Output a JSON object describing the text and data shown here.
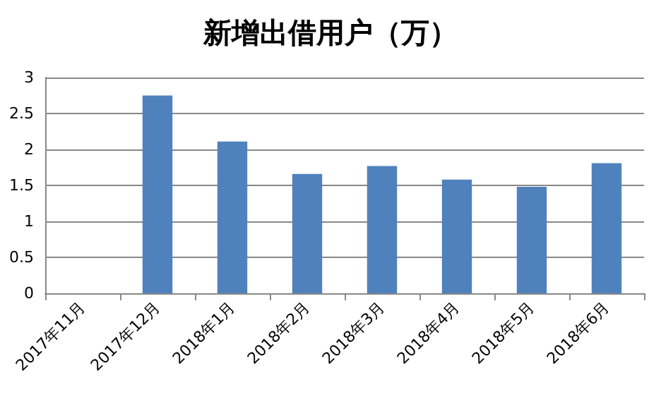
{
  "chart_data": {
    "type": "bar",
    "title": "新增出借用户（万）",
    "categories": [
      "2017年11月",
      "2017年12月",
      "2018年1月",
      "2018年2月",
      "2018年3月",
      "2018年4月",
      "2018年5月",
      "2018年6月"
    ],
    "values": [
      null,
      2.75,
      2.11,
      1.66,
      1.77,
      1.58,
      1.48,
      1.81
    ],
    "color": "#4f81bd",
    "ylim": [
      0,
      3
    ],
    "yticks": [
      0,
      0.5,
      1,
      1.5,
      2,
      2.5,
      3
    ],
    "grid": "y"
  }
}
